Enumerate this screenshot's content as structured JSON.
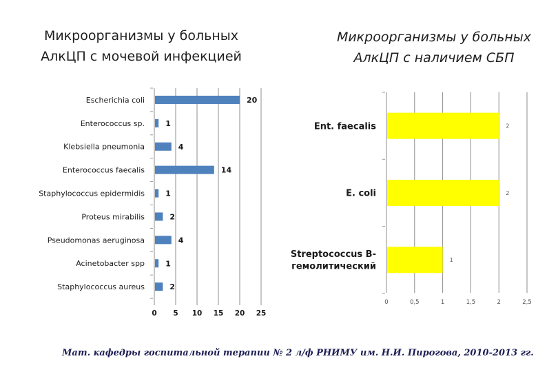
{
  "titles": {
    "left": [
      "Микроорганизмы у больных",
      "АлкЦП с мочевой инфекцией"
    ],
    "right": [
      "Микроорганизмы у больных",
      "АлкЦП с наличием СБП"
    ]
  },
  "footer": "Мат. кафедры госпитальной терапии № 2 л/ф РНИМУ им. Н.И. Пирогова, 2010-2013 гг.",
  "colors": {
    "left_bar": "#4f81bd",
    "right_bar": "#ffff00",
    "grid": "#8c8c8c"
  },
  "chart_data": [
    {
      "type": "bar",
      "orientation": "horizontal",
      "title": "Микроорганизмы у больных АлкЦП с мочевой инфекцией",
      "categories": [
        "Escherichia coli",
        "Enterococcus sp.",
        "Klebsiella pneumonia",
        "Enterococcus faecalis",
        "Staphylococcus epidermidis",
        "Proteus mirabilis",
        "Pseudomonas aeruginosa",
        "Acinetobacter spp",
        "Staphylococcus aureus"
      ],
      "values": [
        20,
        1,
        4,
        14,
        1,
        2,
        4,
        1,
        2
      ],
      "data_labels": [
        "20",
        "1",
        "4",
        "14",
        "1",
        "2",
        "4",
        "1",
        "2"
      ],
      "xlim": [
        0,
        25
      ],
      "xticks": [
        0,
        5,
        10,
        15,
        20,
        25
      ],
      "xtick_labels": [
        "0",
        "5",
        "10",
        "15",
        "20",
        "25"
      ],
      "grid": true,
      "xlabel": "",
      "ylabel": ""
    },
    {
      "type": "bar",
      "orientation": "horizontal",
      "title": "Микроорганизмы у больных АлкЦП с наличием СБП",
      "categories": [
        [
          "Ent. faecalis"
        ],
        [
          "E. coli"
        ],
        [
          "Streptococcus B-",
          "гемолитический"
        ]
      ],
      "values": [
        2,
        2,
        1
      ],
      "data_labels": [
        "2",
        "2",
        "1"
      ],
      "xlim": [
        0,
        2.5
      ],
      "xticks": [
        0,
        0.5,
        1,
        1.5,
        2,
        2.5
      ],
      "xtick_labels": [
        "0",
        "0,5",
        "1",
        "1,5",
        "2",
        "2,5"
      ],
      "grid": true,
      "xlabel": "",
      "ylabel": ""
    }
  ]
}
